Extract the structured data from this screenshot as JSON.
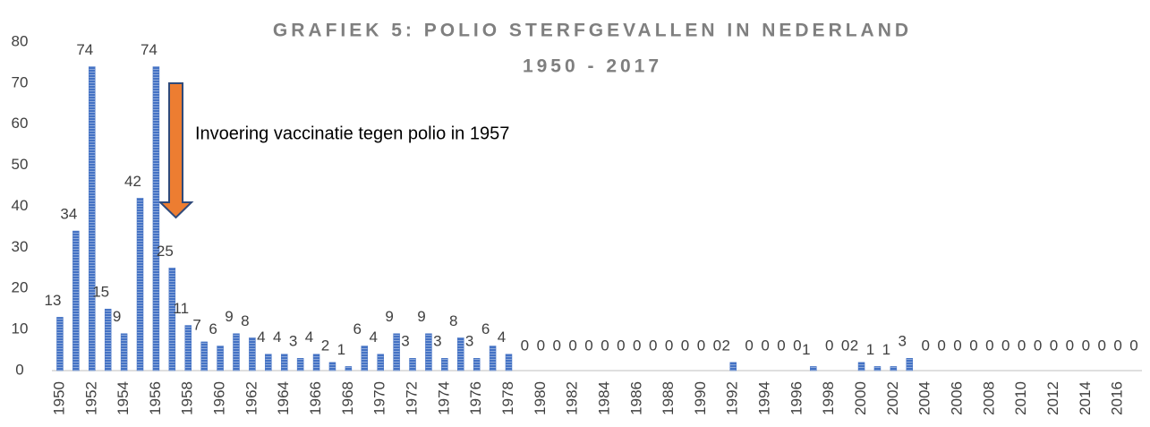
{
  "chart_data": {
    "type": "bar",
    "title": [
      "GRAFIEK 5: POLIO STERFGEVALLEN IN NEDERLAND",
      "1950 - 2017"
    ],
    "annotations": [
      "Invoering vaccinatie tegen polio in 1957"
    ],
    "categories": [
      "1950",
      null,
      "1952",
      null,
      "1954",
      null,
      "1956",
      null,
      "1958",
      null,
      "1960",
      null,
      "1962",
      null,
      "1964",
      null,
      "1966",
      null,
      "1968",
      null,
      "1970",
      null,
      "1972",
      null,
      "1974",
      null,
      "1976",
      null,
      "1978",
      null,
      "1980",
      null,
      "1982",
      null,
      "1984",
      null,
      "1986",
      null,
      "1988",
      null,
      "1990",
      null,
      "1992",
      null,
      "1994",
      null,
      "1996",
      null,
      "1998",
      null,
      "2000",
      null,
      "2002",
      null,
      "2004",
      null,
      "2006",
      null,
      "2008",
      null,
      "2010",
      null,
      "2012",
      null,
      "2014",
      null,
      "2016",
      null
    ],
    "values": [
      13,
      34,
      74,
      15,
      9,
      42,
      74,
      25,
      11,
      7,
      6,
      9,
      8,
      4,
      4,
      3,
      4,
      2,
      1,
      6,
      4,
      9,
      3,
      9,
      3,
      8,
      3,
      6,
      4,
      0,
      0,
      0,
      0,
      0,
      0,
      0,
      0,
      0,
      0,
      0,
      0,
      0,
      2,
      0,
      0,
      0,
      0,
      1,
      0,
      0,
      2,
      1,
      1,
      3,
      0,
      0,
      0,
      0,
      0,
      0,
      0,
      0,
      0,
      0,
      0,
      0,
      0,
      0
    ],
    "color": "#4472c4",
    "ylim": [
      0,
      80
    ],
    "yticks": [
      0,
      10,
      20,
      30,
      40,
      50,
      60,
      70,
      80
    ],
    "grid": false
  }
}
